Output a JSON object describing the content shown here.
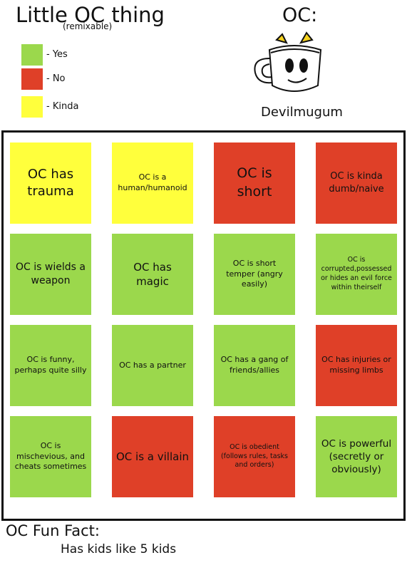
{
  "header": {
    "title": "Little OC thing",
    "subtitle": "(remixable)"
  },
  "legend": [
    {
      "label": "- Yes",
      "color": "#9bd84c"
    },
    {
      "label": "- No",
      "color": "#df4028"
    },
    {
      "label": "- Kinda",
      "color": "#ffff3c"
    }
  ],
  "oc": {
    "label": "OC:",
    "name": "Devilmugum"
  },
  "grid": [
    {
      "text": "OC has trauma",
      "color": "#ffff3c"
    },
    {
      "text": "OC is a human/humanoid",
      "color": "#ffff3c"
    },
    {
      "text": "OC is short",
      "color": "#df4028"
    },
    {
      "text": "OC is kinda dumb/naive",
      "color": "#df4028"
    },
    {
      "text": "OC is wields a weapon",
      "color": "#9bd84c"
    },
    {
      "text": "OC has magic",
      "color": "#9bd84c"
    },
    {
      "text": "OC is short temper (angry easily)",
      "color": "#9bd84c"
    },
    {
      "text": "OC is corrupted,possessed or hides an evil force within theirself",
      "color": "#9bd84c"
    },
    {
      "text": "OC is funny, perhaps quite silly",
      "color": "#9bd84c"
    },
    {
      "text": "OC has a partner",
      "color": "#9bd84c"
    },
    {
      "text": "OC has a gang of friends/allies",
      "color": "#9bd84c"
    },
    {
      "text": "OC has injuries or missing limbs",
      "color": "#df4028"
    },
    {
      "text": "OC is mischevious, and cheats sometimes",
      "color": "#9bd84c"
    },
    {
      "text": "OC is a villain",
      "color": "#df4028"
    },
    {
      "text": "OC is obedient (follows rules, tasks and orders)",
      "color": "#df4028"
    },
    {
      "text": "OC is powerful (secretly or obviously)",
      "color": "#9bd84c"
    }
  ],
  "fun_fact": {
    "title": "OC Fun Fact:",
    "text": "Has kids like 5 kids"
  }
}
